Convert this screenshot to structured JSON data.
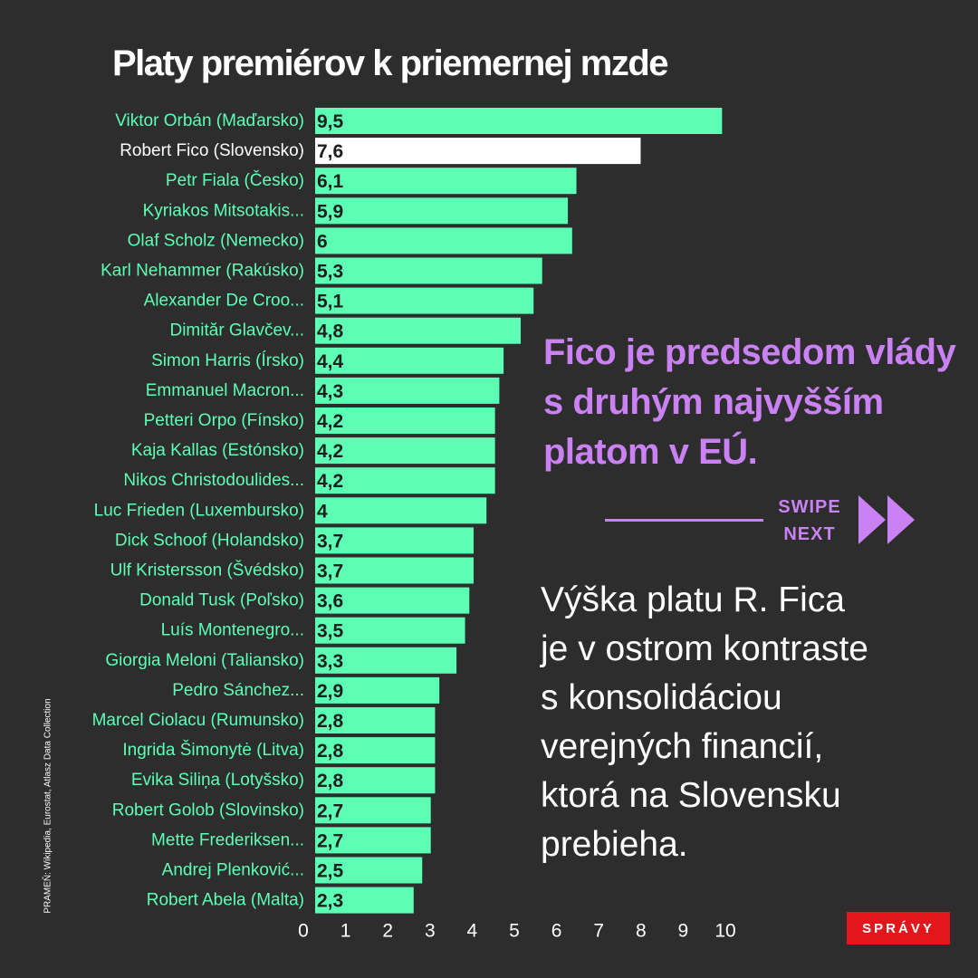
{
  "chart_data": {
    "type": "bar",
    "orientation": "horizontal",
    "title": "Platy premiérov k priemernej mzde",
    "xlabel": "",
    "ylabel": "",
    "xlim": [
      0,
      10
    ],
    "x_ticks": [
      "0",
      "1",
      "2",
      "3",
      "4",
      "5",
      "6",
      "7",
      "8",
      "9",
      "10"
    ],
    "grid": false,
    "categories": [
      "Viktor Orbán (Maďarsko)",
      "Robert Fico (Slovensko)",
      "Petr Fiala (Česko)",
      "Kyriakos Mitsotakis...",
      "Olaf Scholz (Nemecko)",
      "Karl Nehammer (Rakúsko)",
      "Alexander De Croo...",
      "Dimităr Glavčev...",
      "Simon Harris (Írsko)",
      "Emmanuel Macron...",
      "Petteri Orpo (Fínsko)",
      "Kaja Kallas (Estónsko)",
      "Nikos Christodoulides...",
      "Luc Frieden (Luxembursko)",
      "Dick Schoof (Holandsko)",
      "Ulf Kristersson (Švédsko)",
      "Donald Tusk (Poľsko)",
      "Luís Montenegro...",
      "Giorgia Meloni (Taliansko)",
      "Pedro Sánchez...",
      "Marcel Ciolacu (Rumunsko)",
      "Ingrida Šimonytė (Litva)",
      "Evika Siliņa (Lotyšsko)",
      "Robert Golob (Slovinsko)",
      "Mette Frederiksen...",
      "Andrej Plenković...",
      "Robert Abela (Malta)"
    ],
    "values": [
      9.5,
      7.6,
      6.1,
      5.9,
      6,
      5.3,
      5.1,
      4.8,
      4.4,
      4.3,
      4.2,
      4.2,
      4.2,
      4,
      3.7,
      3.7,
      3.6,
      3.5,
      3.3,
      2.9,
      2.8,
      2.8,
      2.8,
      2.7,
      2.7,
      2.5,
      2.3
    ],
    "value_labels": [
      "9,5",
      "7,6",
      "6,1",
      "5,9",
      "6",
      "5,3",
      "5,1",
      "4,8",
      "4,4",
      "4,3",
      "4,2",
      "4,2",
      "4,2",
      "4",
      "3,7",
      "3,7",
      "3,6",
      "3,5",
      "3,3",
      "2,9",
      "2,8",
      "2,8",
      "2,8",
      "2,7",
      "2,7",
      "2,5",
      "2,3"
    ],
    "highlight": "Robert Fico (Slovensko)",
    "colors": {
      "bar": "#5cffb4",
      "highlight_bar": "#ffffff",
      "label": "#5cffb4",
      "highlight_label": "#ffffff",
      "value_text": "#1e1e1e",
      "axis_text": "#ffffff"
    }
  },
  "source": "PRAMEŇ: Wikipedia, Eurostat, Atlasz Data Collection",
  "headline": [
    "Fico je predsedom vlády",
    "s druhým najvyšším",
    "platom v EÚ."
  ],
  "swipe": {
    "line1": "SWIPE",
    "line2": "NEXT"
  },
  "body_text": [
    "Výška platu R. Fica",
    "je v ostrom kontraste",
    "s konsolidáciou",
    "verejných financií,",
    "ktorá na Slovensku",
    "prebieha."
  ],
  "brand": "SPRÁVY",
  "colors": {
    "background": "#2d2d2d",
    "accent": "#c981f3",
    "brand": "#e3161b"
  }
}
